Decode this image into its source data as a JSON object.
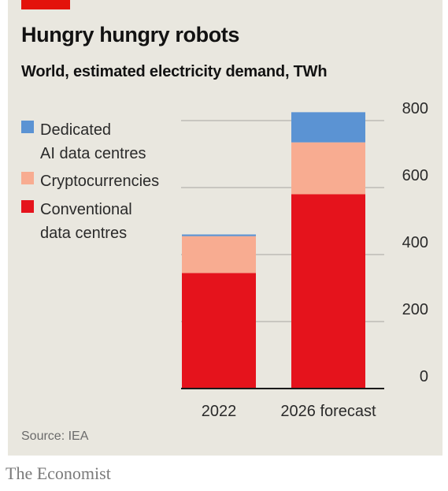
{
  "title": "Hungry hungry robots",
  "subtitle": "World, estimated electricity demand, TWh",
  "source": "Source: IEA",
  "brand": "The Economist",
  "legend": [
    {
      "lines": [
        "Dedicated",
        "AI data centres"
      ],
      "color": "#5b93d3"
    },
    {
      "lines": [
        "Cryptocurrencies"
      ],
      "color": "#f8ac91"
    },
    {
      "lines": [
        "Conventional",
        "data centres"
      ],
      "color": "#e5131c"
    }
  ],
  "chart_data": {
    "type": "bar",
    "stacked": true,
    "categories": [
      "2022",
      "2026 forecast"
    ],
    "series": [
      {
        "name": "Conventional data centres",
        "values": [
          345,
          580
        ],
        "color": "#e5131c"
      },
      {
        "name": "Cryptocurrencies",
        "values": [
          110,
          155
        ],
        "color": "#f8ac91"
      },
      {
        "name": "Dedicated AI data centres",
        "values": [
          5,
          90
        ],
        "color": "#5b93d3"
      }
    ],
    "ylim": [
      0,
      800
    ],
    "yticks": [
      0,
      200,
      400,
      600,
      800
    ],
    "title": "Hungry hungry robots",
    "ylabel": "TWh",
    "xlabel": "",
    "grid": true,
    "legend_placement": "top-left"
  }
}
